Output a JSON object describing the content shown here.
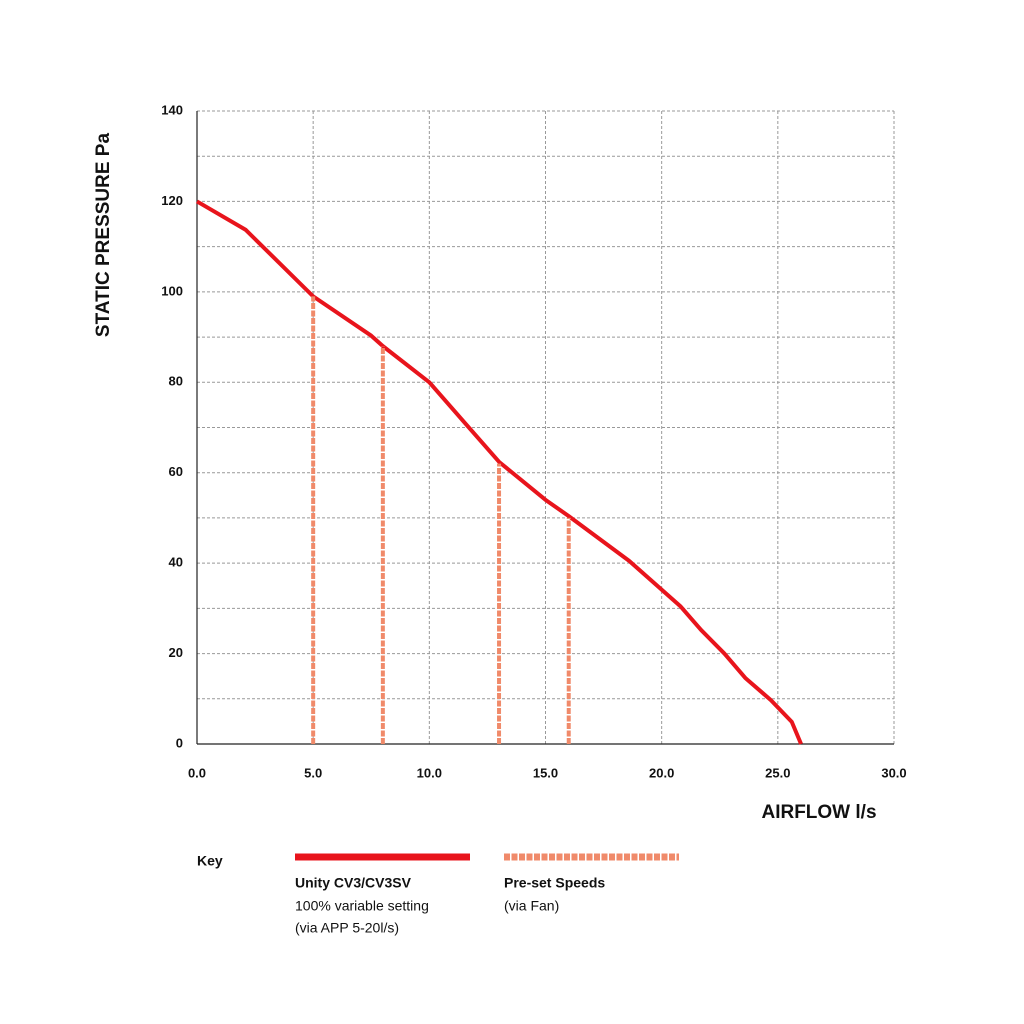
{
  "chart_data": {
    "type": "line",
    "x_label": "AIRFLOW  l/s",
    "y_label": "STATIC PRESSURE  Pa",
    "legend_title": "Key",
    "xlim": [
      0,
      30
    ],
    "ylim": [
      0,
      140
    ],
    "xticks": [
      {
        "value": 0,
        "label": "0.0"
      },
      {
        "value": 5,
        "label": "5.0"
      },
      {
        "value": 10,
        "label": "10.0"
      },
      {
        "value": 15,
        "label": "15.0"
      },
      {
        "value": 20,
        "label": "20.0"
      },
      {
        "value": 25,
        "label": "25.0"
      },
      {
        "value": 30,
        "label": "30.0"
      }
    ],
    "yticks": [
      0,
      20,
      40,
      60,
      80,
      100,
      120,
      140
    ],
    "y_minor_ticks": [
      10,
      30,
      50,
      70,
      90,
      110,
      130
    ],
    "grid": true,
    "series": [
      {
        "name": "Unity CV3/CV3SV",
        "description": [
          "100% variable setting",
          "(via APP 5-20l/s)"
        ],
        "color": "#e8141c",
        "style": "solid",
        "x": [
          0,
          2.1,
          5,
          7.5,
          8,
          10,
          11.6,
          13,
          15,
          16,
          18.6,
          20.8,
          21.7,
          22.7,
          23.6,
          24.7,
          25.6,
          26
        ],
        "values": [
          120,
          113.7,
          99,
          90.3,
          88,
          80,
          70.6,
          62.4,
          54,
          50.4,
          40.5,
          30.5,
          25.2,
          20,
          14.6,
          9.7,
          4.9,
          0
        ]
      },
      {
        "name": "Pre-set Speeds",
        "description": [
          "(via Fan)"
        ],
        "color": "#f08a6a",
        "style": "drop-lines",
        "x": [
          5,
          8,
          13,
          16
        ],
        "values": [
          99,
          88,
          62,
          50
        ]
      }
    ]
  }
}
